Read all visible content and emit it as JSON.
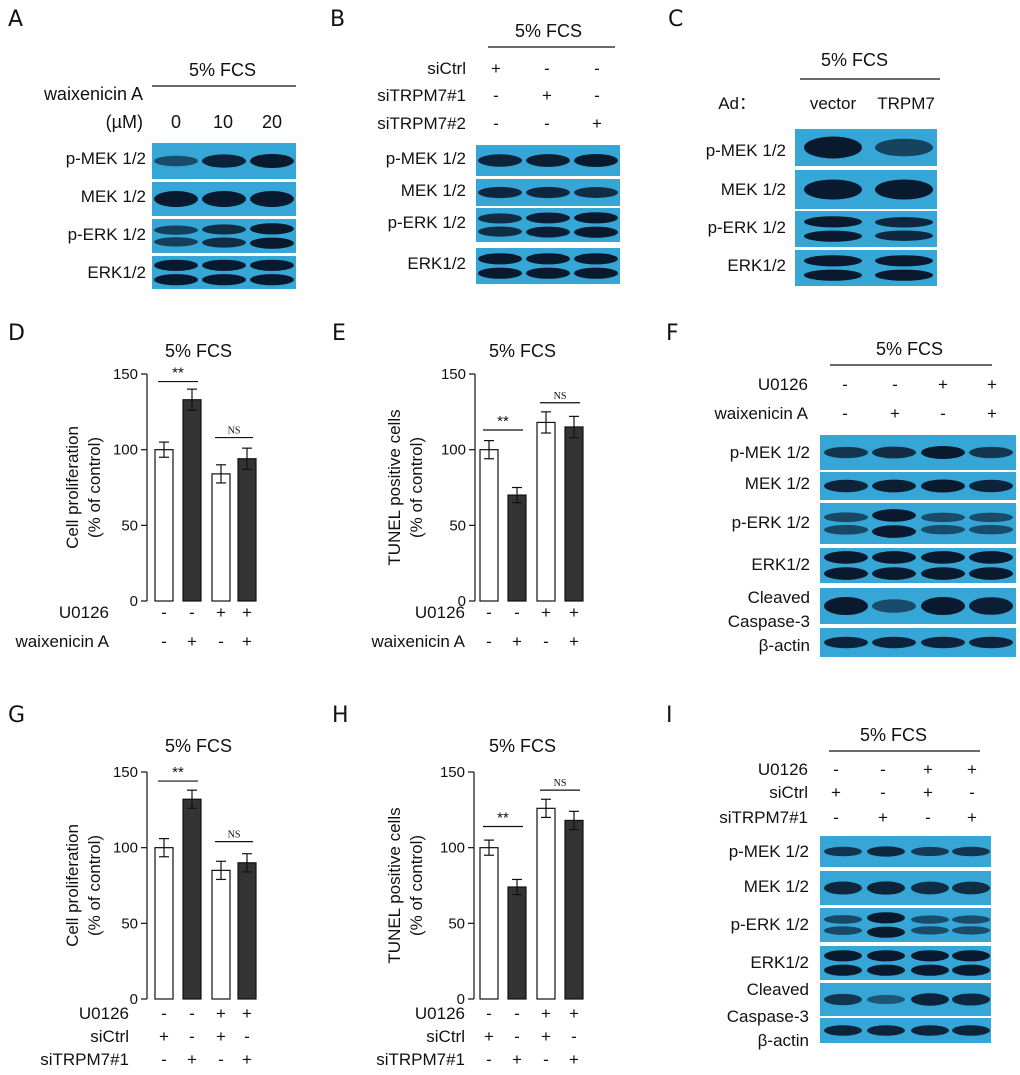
{
  "figure": {
    "panel_letters": [
      "A",
      "B",
      "C",
      "D",
      "E",
      "F",
      "G",
      "H",
      "I"
    ],
    "condition": "5% FCS",
    "blot_fill": "#35a6d6",
    "band_color": "#0a1a2e",
    "bar_open": "#ffffff",
    "bar_filled": "#333333"
  },
  "panelA": {
    "treatment": "waixenicin A",
    "unit": "(µM)",
    "doses": [
      "0",
      "10",
      "20"
    ],
    "blots": [
      "p-MEK 1/2",
      "MEK 1/2",
      "p-ERK 1/2",
      "ERK1/2"
    ],
    "band_intensity": [
      [
        0.45,
        0.9,
        1.0
      ],
      [
        1.0,
        1.0,
        1.0
      ],
      [
        0.6,
        0.8,
        1.0
      ],
      [
        1.0,
        1.0,
        1.0
      ]
    ]
  },
  "panelB": {
    "rows": [
      {
        "label": "siCtrl",
        "signs": [
          "+",
          "-",
          "-"
        ]
      },
      {
        "label": "siTRPM7#1",
        "signs": [
          "-",
          "+",
          "-"
        ]
      },
      {
        "label": "siTRPM7#2",
        "signs": [
          "-",
          "-",
          "+"
        ]
      }
    ],
    "blots": [
      "p-MEK 1/2",
      "MEK 1/2",
      "p-ERK 1/2",
      "ERK1/2"
    ],
    "band_intensity": [
      [
        0.9,
        0.95,
        1.0
      ],
      [
        0.85,
        0.85,
        0.8
      ],
      [
        0.8,
        0.95,
        1.0
      ],
      [
        1.0,
        1.0,
        1.0
      ]
    ]
  },
  "panelC": {
    "ad_label": "Ad：",
    "columns": [
      "vector",
      "TRPM7"
    ],
    "blots": [
      "p-MEK 1/2",
      "MEK 1/2",
      "p-ERK 1/2",
      "ERK1/2"
    ],
    "band_intensity": [
      [
        1.0,
        0.55
      ],
      [
        1.0,
        1.0
      ],
      [
        1.0,
        0.85
      ],
      [
        1.0,
        1.0
      ]
    ]
  },
  "panelF": {
    "rows": [
      {
        "label": "U0126",
        "signs": [
          "-",
          "-",
          "+",
          "+"
        ]
      },
      {
        "label": "waixenicin A",
        "signs": [
          "-",
          "+",
          "-",
          "+"
        ]
      }
    ],
    "blots": [
      "p-MEK 1/2",
      "MEK 1/2",
      "p-ERK 1/2",
      "ERK1/2",
      "Cleaved",
      "Caspase-3",
      "β-actin"
    ],
    "band_intensity": [
      [
        0.7,
        0.8,
        1.0,
        0.7
      ],
      [
        0.9,
        0.95,
        1.0,
        0.9
      ],
      [
        0.5,
        1.0,
        0.45,
        0.45
      ],
      [
        1.0,
        1.0,
        1.0,
        1.0
      ],
      [
        1.0,
        0.45,
        1.0,
        0.95
      ],
      [
        0.9,
        0.9,
        0.9,
        0.9
      ]
    ]
  },
  "panelI": {
    "rows": [
      {
        "label": "U0126",
        "signs": [
          "-",
          "-",
          "+",
          "+"
        ]
      },
      {
        "label": "siCtrl",
        "signs": [
          "+",
          "-",
          "+",
          "-"
        ]
      },
      {
        "label": "siTRPM7#1",
        "signs": [
          "-",
          "+",
          "-",
          "+"
        ]
      }
    ],
    "blots": [
      "p-MEK 1/2",
      "MEK 1/2",
      "p-ERK 1/2",
      "ERK1/2",
      "Cleaved",
      "Caspase-3",
      "β-actin"
    ],
    "band_intensity": [
      [
        0.7,
        0.85,
        0.65,
        0.7
      ],
      [
        0.85,
        0.9,
        0.8,
        0.8
      ],
      [
        0.5,
        1.0,
        0.45,
        0.45
      ],
      [
        1.0,
        1.0,
        1.0,
        1.0
      ],
      [
        0.7,
        0.35,
        0.9,
        0.85
      ],
      [
        0.9,
        0.9,
        0.9,
        0.9
      ]
    ]
  },
  "chart_data": [
    {
      "panel": "D",
      "type": "bar",
      "title": "5% FCS",
      "ylabel": [
        "Cell proliferation",
        "(% of control)"
      ],
      "ylim": [
        0,
        150
      ],
      "yticks": [
        0,
        50,
        100,
        150
      ],
      "values": [
        100,
        133,
        84,
        94
      ],
      "errors": [
        5,
        7,
        6,
        7
      ],
      "fills": [
        "open",
        "filled",
        "open",
        "filled"
      ],
      "conditions": [
        {
          "label": "U0126",
          "signs": [
            "-",
            "-",
            "+",
            "+"
          ]
        },
        {
          "label": "waixenicin A",
          "signs": [
            "-",
            "+",
            "-",
            "+"
          ]
        }
      ],
      "significance": [
        {
          "bars": [
            0,
            1
          ],
          "text": "**",
          "level": 145
        },
        {
          "bars": [
            2,
            3
          ],
          "text": "NS",
          "level": 108
        }
      ]
    },
    {
      "panel": "E",
      "type": "bar",
      "title": "5% FCS",
      "ylabel": [
        "TUNEL positive cells",
        "(% of control)"
      ],
      "ylim": [
        0,
        150
      ],
      "yticks": [
        0,
        50,
        100,
        150
      ],
      "values": [
        100,
        70,
        118,
        115
      ],
      "errors": [
        6,
        5,
        7,
        7
      ],
      "fills": [
        "open",
        "filled",
        "open",
        "filled"
      ],
      "conditions": [
        {
          "label": "U0126",
          "signs": [
            "-",
            "-",
            "+",
            "+"
          ]
        },
        {
          "label": "waixenicin A",
          "signs": [
            "-",
            "+",
            "-",
            "+"
          ]
        }
      ],
      "significance": [
        {
          "bars": [
            0,
            1
          ],
          "text": "**",
          "level": 113
        },
        {
          "bars": [
            2,
            3
          ],
          "text": "NS",
          "level": 131
        }
      ]
    },
    {
      "panel": "G",
      "type": "bar",
      "title": "5% FCS",
      "ylabel": [
        "Cell proliferation",
        "(% of control)"
      ],
      "ylim": [
        0,
        150
      ],
      "yticks": [
        0,
        50,
        100,
        150
      ],
      "values": [
        100,
        132,
        85,
        90
      ],
      "errors": [
        6,
        6,
        6,
        6
      ],
      "fills": [
        "open",
        "filled",
        "open",
        "filled"
      ],
      "conditions": [
        {
          "label": "U0126",
          "signs": [
            "-",
            "-",
            "+",
            "+"
          ]
        },
        {
          "label": "siCtrl",
          "signs": [
            "+",
            "-",
            "+",
            "-"
          ]
        },
        {
          "label": "siTRPM7#1",
          "signs": [
            "-",
            "+",
            "-",
            "+"
          ]
        }
      ],
      "significance": [
        {
          "bars": [
            0,
            1
          ],
          "text": "**",
          "level": 144
        },
        {
          "bars": [
            2,
            3
          ],
          "text": "NS",
          "level": 104
        }
      ]
    },
    {
      "panel": "H",
      "type": "bar",
      "title": "5% FCS",
      "ylabel": [
        "TUNEL positive cells",
        "(% of control)"
      ],
      "ylim": [
        0,
        150
      ],
      "yticks": [
        0,
        50,
        100,
        150
      ],
      "values": [
        100,
        74,
        126,
        118
      ],
      "errors": [
        5,
        5,
        6,
        6
      ],
      "fills": [
        "open",
        "filled",
        "open",
        "filled"
      ],
      "conditions": [
        {
          "label": "U0126",
          "signs": [
            "-",
            "-",
            "+",
            "+"
          ]
        },
        {
          "label": "siCtrl",
          "signs": [
            "+",
            "-",
            "+",
            "-"
          ]
        },
        {
          "label": "siTRPM7#1",
          "signs": [
            "-",
            "+",
            "-",
            "+"
          ]
        }
      ],
      "significance": [
        {
          "bars": [
            0,
            1
          ],
          "text": "**",
          "level": 114
        },
        {
          "bars": [
            2,
            3
          ],
          "text": "NS",
          "level": 138
        }
      ]
    }
  ]
}
